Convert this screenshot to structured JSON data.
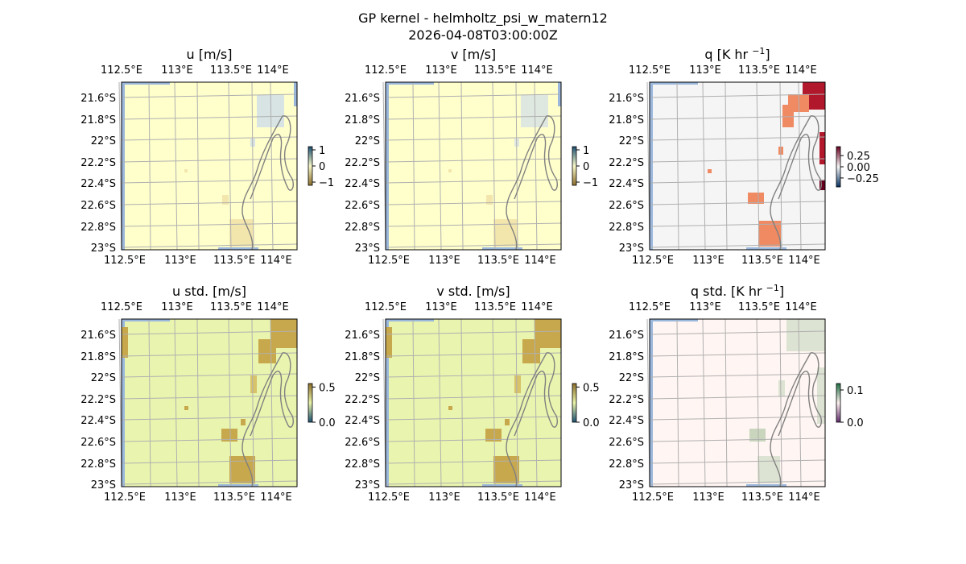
{
  "figure": {
    "title_line1": "GP kernel - helmholtz_psi_w_matern12",
    "title_line2": "2026-04-08T03:00:00Z"
  },
  "chart_data": [
    {
      "type": "heatmap",
      "title_main": "u [m/s]",
      "title_sup": "",
      "x_ticks": [
        "112.5°E",
        "113°E",
        "113.5°E",
        "114°E"
      ],
      "y_ticks": [
        "21.6°S",
        "21.8°S",
        "22°S",
        "22.2°S",
        "22.4°S",
        "22.6°S",
        "22.8°S",
        "23°S"
      ],
      "xlim": [
        112.45,
        114.2
      ],
      "ylim": [
        -23.0,
        -21.45
      ],
      "colorbar": {
        "ticks": [
          "1",
          "0",
          "−1"
        ],
        "tick_values": [
          1,
          0,
          -1
        ],
        "range": [
          -1.2,
          1.2
        ],
        "colors": [
          "#1b4f72",
          "#f7f7c8",
          "#8a6d2b"
        ]
      },
      "field": {
        "base": "#ffffcc",
        "patch": "#f3e6ad",
        "cool_patch": "#d8e4e4"
      }
    },
    {
      "type": "heatmap",
      "title_main": "v [m/s]",
      "title_sup": "",
      "x_ticks": [
        "112.5°E",
        "113°E",
        "113.5°E",
        "114°E"
      ],
      "y_ticks": [
        "21.6°S",
        "21.8°S",
        "22°S",
        "22.2°S",
        "22.4°S",
        "22.6°S",
        "22.8°S",
        "23°S"
      ],
      "xlim": [
        112.45,
        114.2
      ],
      "ylim": [
        -23.0,
        -21.45
      ],
      "colorbar": {
        "ticks": [
          "1",
          "0",
          "−1"
        ],
        "tick_values": [
          1,
          0,
          -1
        ],
        "range": [
          -1.2,
          1.2
        ],
        "colors": [
          "#1b4f72",
          "#f7f7c8",
          "#8a6d2b"
        ]
      },
      "field": {
        "base": "#ffffcc",
        "patch": "#f3e6ad",
        "cool_patch": "#dfe8e0"
      }
    },
    {
      "type": "heatmap",
      "title_main": "q [K hr ",
      "title_sup": "−1",
      "title_end": "]",
      "x_ticks": [
        "112.5°E",
        "113°E",
        "113.5°E",
        "114°E"
      ],
      "y_ticks": [
        "21.6°S",
        "21.8°S",
        "22°S",
        "22.2°S",
        "22.4°S",
        "22.6°S",
        "22.8°S",
        "23°S"
      ],
      "xlim": [
        112.45,
        114.2
      ],
      "ylim": [
        -23.0,
        -21.45
      ],
      "colorbar": {
        "ticks": [
          "0.25",
          "0.00",
          "−0.25"
        ],
        "tick_values": [
          0.25,
          0.0,
          -0.25
        ],
        "range": [
          -0.45,
          0.45
        ],
        "colors": [
          "#67001f",
          "#f7f7f7",
          "#053061"
        ]
      },
      "field": {
        "base": "#f5f5f5",
        "patch": "#ef8a62",
        "cool_patch": "#b2182b"
      }
    },
    {
      "type": "heatmap",
      "title_main": "u std. [m/s]",
      "title_sup": "",
      "x_ticks": [
        "112.5°E",
        "113°E",
        "113.5°E",
        "114°E"
      ],
      "y_ticks": [
        "21.6°S",
        "21.8°S",
        "22°S",
        "22.2°S",
        "22.4°S",
        "22.6°S",
        "22.8°S",
        "23°S"
      ],
      "xlim": [
        112.45,
        114.2
      ],
      "ylim": [
        -23.0,
        -21.45
      ],
      "colorbar": {
        "ticks": [
          "0.5",
          "0.0"
        ],
        "tick_values": [
          0.5,
          0.0
        ],
        "range": [
          0,
          0.55
        ],
        "colors": [
          "#8a6d2b",
          "#e8f2a8",
          "#1b4f72"
        ]
      },
      "field": {
        "base": "#e9f5ae",
        "patch": "#c8a84c",
        "cool_patch": "#d8c26a"
      }
    },
    {
      "type": "heatmap",
      "title_main": "v std. [m/s]",
      "title_sup": "",
      "x_ticks": [
        "112.5°E",
        "113°E",
        "113.5°E",
        "114°E"
      ],
      "y_ticks": [
        "21.6°S",
        "21.8°S",
        "22°S",
        "22.2°S",
        "22.4°S",
        "22.6°S",
        "22.8°S",
        "23°S"
      ],
      "xlim": [
        112.45,
        114.2
      ],
      "ylim": [
        -23.0,
        -21.45
      ],
      "colorbar": {
        "ticks": [
          "0.5",
          "0.0"
        ],
        "tick_values": [
          0.5,
          0.0
        ],
        "range": [
          0,
          0.55
        ],
        "colors": [
          "#8a6d2b",
          "#e8f2a8",
          "#1b4f72"
        ]
      },
      "field": {
        "base": "#e9f5ae",
        "patch": "#c8a84c",
        "cool_patch": "#d8c26a"
      }
    },
    {
      "type": "heatmap",
      "title_main": "q std. [K hr ",
      "title_sup": "−1",
      "title_end": "]",
      "x_ticks": [
        "112.5°E",
        "113°E",
        "113.5°E",
        "114°E"
      ],
      "y_ticks": [
        "21.6°S",
        "21.8°S",
        "22°S",
        "22.2°S",
        "22.4°S",
        "22.6°S",
        "22.8°S",
        "23°S"
      ],
      "xlim": [
        112.45,
        114.2
      ],
      "ylim": [
        -23.0,
        -21.45
      ],
      "colorbar": {
        "ticks": [
          "0.1",
          "0.0"
        ],
        "tick_values": [
          0.1,
          0.0
        ],
        "range": [
          0,
          0.12
        ],
        "colors": [
          "#1f6e43",
          "#fdf0ee",
          "#5e2b6b"
        ]
      },
      "field": {
        "base": "#fff5f2",
        "patch": "#dde3d2",
        "cool_patch": "#c9d6bd"
      }
    }
  ]
}
